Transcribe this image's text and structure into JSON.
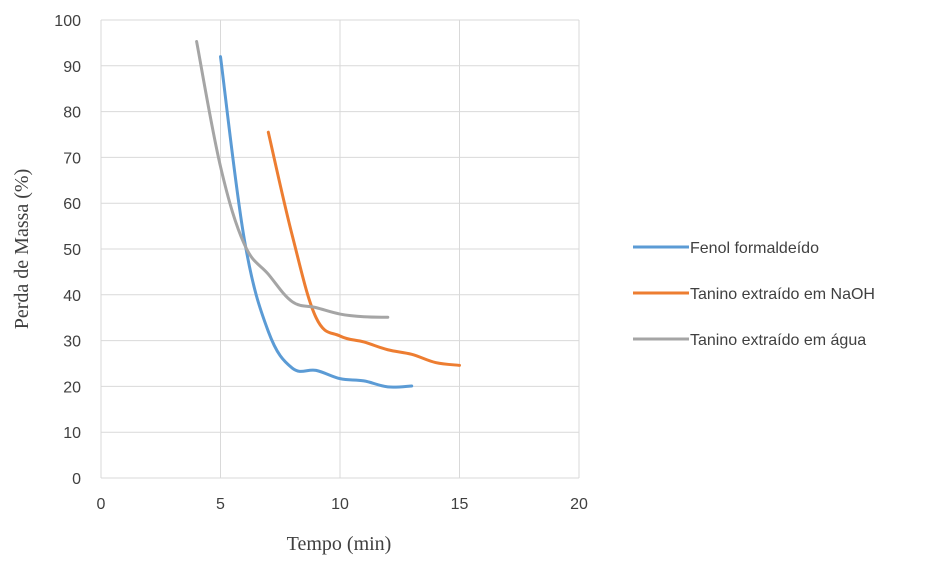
{
  "chart_data": {
    "type": "line",
    "title": "",
    "xlabel": "Tempo (min)",
    "ylabel": "Perda de Massa (%)",
    "xlim": [
      0,
      20
    ],
    "ylim": [
      0,
      100
    ],
    "xticks": [
      "0",
      "5",
      "10",
      "15",
      "20"
    ],
    "yticks": [
      "0",
      "10",
      "20",
      "30",
      "40",
      "50",
      "60",
      "70",
      "80",
      "90",
      "100"
    ],
    "grid": true,
    "legend_position": "right",
    "series": [
      {
        "name": "Fenol formaldeído",
        "color": "#5B9BD5",
        "x": [
          5,
          6,
          7,
          8,
          9,
          10,
          11,
          12,
          13
        ],
        "y": [
          92,
          52,
          32,
          24,
          23.5,
          21.7,
          21.2,
          19.9,
          20.1
        ]
      },
      {
        "name": "Tanino extraído em NaOH",
        "color": "#ED7D31",
        "x": [
          7,
          8,
          9,
          10,
          11,
          12,
          13,
          14,
          15
        ],
        "y": [
          75.5,
          53,
          35,
          31,
          29.7,
          28,
          27,
          25.2,
          24.6
        ]
      },
      {
        "name": "Tanino extraído em água",
        "color": "#A5A5A5",
        "x": [
          4,
          5,
          6,
          7,
          8,
          9,
          10,
          11,
          12
        ],
        "y": [
          95.3,
          68,
          51,
          44.5,
          38.5,
          37.2,
          35.8,
          35.2,
          35.1
        ]
      }
    ]
  }
}
